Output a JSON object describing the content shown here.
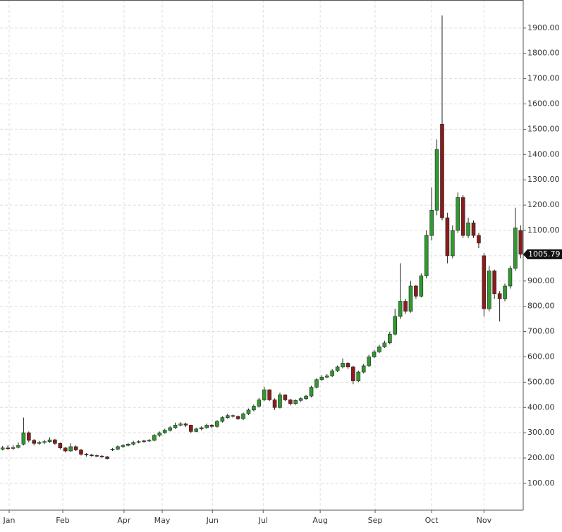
{
  "chart_data": {
    "type": "candlestick",
    "up_color": "#2f9a2f",
    "down_color": "#8b1c1c",
    "grid": true,
    "xlim": [
      0,
      100
    ],
    "xticks": [
      {
        "value": 1.75,
        "label": "Jan"
      },
      {
        "value": 12,
        "label": "Feb"
      },
      {
        "value": 23.7,
        "label": "Apr"
      },
      {
        "value": 31,
        "label": "May"
      },
      {
        "value": 40.6,
        "label": "Jun"
      },
      {
        "value": 50.3,
        "label": "Jul"
      },
      {
        "value": 61.2,
        "label": "Aug"
      },
      {
        "value": 71.7,
        "label": "Sep"
      },
      {
        "value": 82.5,
        "label": "Oct"
      },
      {
        "value": 92.5,
        "label": "Nov"
      }
    ],
    "ylim": [
      -6,
      2011
    ],
    "yticks": [
      {
        "value": 100,
        "label": "100.00"
      },
      {
        "value": 200,
        "label": "200.00"
      },
      {
        "value": 300,
        "label": "300.00"
      },
      {
        "value": 400,
        "label": "400.00"
      },
      {
        "value": 500,
        "label": "500.00"
      },
      {
        "value": 600,
        "label": "600.00"
      },
      {
        "value": 700,
        "label": "700.00"
      },
      {
        "value": 800,
        "label": "800.00"
      },
      {
        "value": 900,
        "label": "900.00"
      },
      {
        "value": 1000,
        "label": "1000.00"
      },
      {
        "value": 1100,
        "label": "1100.00"
      },
      {
        "value": 1200,
        "label": "1200.00"
      },
      {
        "value": 1300,
        "label": "1300.00"
      },
      {
        "value": 1400,
        "label": "1400.00"
      },
      {
        "value": 1500,
        "label": "1500.00"
      },
      {
        "value": 1600,
        "label": "1600.00"
      },
      {
        "value": 1700,
        "label": "1700.00"
      },
      {
        "value": 1800,
        "label": "1800.00"
      },
      {
        "value": 1900,
        "label": "1900.00"
      }
    ],
    "x": [
      0.5,
      1.5,
      2.5,
      3.5,
      4.5,
      5.5,
      6.5,
      7.5,
      8.5,
      9.5,
      10.5,
      11.5,
      12.5,
      13.5,
      14.5,
      15.5,
      16.5,
      17.5,
      18.5,
      19.5,
      20.5,
      21.5,
      22.5,
      23.5,
      24.5,
      25.5,
      26.5,
      27.5,
      28.5,
      29.5,
      30.5,
      31.5,
      32.5,
      33.5,
      34.5,
      35.5,
      36.5,
      37.5,
      38.5,
      39.5,
      40.5,
      41.5,
      42.5,
      43.5,
      44.5,
      45.5,
      46.5,
      47.5,
      48.5,
      49.5,
      50.5,
      51.5,
      52.5,
      53.5,
      54.5,
      55.5,
      56.5,
      57.5,
      58.5,
      59.5,
      60.5,
      61.5,
      62.5,
      63.5,
      64.5,
      65.5,
      66.5,
      67.5,
      68.5,
      69.5,
      70.5,
      71.5,
      72.5,
      73.5,
      74.5,
      75.5,
      76.5,
      77.5,
      78.5,
      79.5,
      80.5,
      81.5,
      82.5,
      83.5,
      84.5,
      85.5,
      86.5,
      87.5,
      88.5,
      89.5,
      90.5,
      91.5,
      92.5,
      93.5,
      94.5,
      95.5,
      96.5,
      97.5,
      98.5,
      99.5
    ],
    "open": [
      235,
      240,
      238,
      242,
      255,
      300,
      270,
      258,
      262,
      265,
      272,
      258,
      240,
      228,
      245,
      232,
      215,
      212,
      210,
      208,
      205,
      232,
      235,
      245,
      250,
      255,
      262,
      265,
      268,
      270,
      290,
      300,
      310,
      320,
      330,
      335,
      330,
      305,
      315,
      320,
      330,
      325,
      345,
      360,
      368,
      365,
      355,
      375,
      390,
      405,
      430,
      470,
      430,
      400,
      450,
      430,
      415,
      428,
      435,
      445,
      480,
      510,
      520,
      525,
      545,
      560,
      575,
      560,
      505,
      540,
      565,
      600,
      620,
      640,
      655,
      690,
      760,
      820,
      780,
      880,
      840,
      920,
      1080,
      1180,
      1520,
      1150,
      1000,
      1100,
      1230,
      1080,
      1130,
      1080,
      1000,
      790,
      940,
      850,
      830,
      880,
      950,
      1100
    ],
    "high": [
      248,
      250,
      252,
      262,
      360,
      305,
      275,
      268,
      272,
      282,
      276,
      262,
      244,
      258,
      250,
      236,
      220,
      217,
      214,
      212,
      208,
      240,
      250,
      255,
      260,
      268,
      270,
      272,
      275,
      295,
      305,
      316,
      326,
      340,
      342,
      340,
      332,
      320,
      326,
      336,
      334,
      350,
      366,
      375,
      372,
      368,
      380,
      396,
      412,
      438,
      482,
      472,
      436,
      458,
      452,
      434,
      432,
      440,
      450,
      486,
      516,
      528,
      532,
      552,
      566,
      594,
      580,
      565,
      546,
      572,
      608,
      628,
      648,
      664,
      700,
      790,
      970,
      830,
      900,
      885,
      930,
      1100,
      1270,
      1460,
      1950,
      1170,
      1120,
      1250,
      1240,
      1150,
      1140,
      1090,
      1010,
      960,
      945,
      860,
      890,
      960,
      1190,
      1120
    ],
    "low": [
      230,
      232,
      232,
      238,
      250,
      262,
      250,
      252,
      255,
      260,
      252,
      234,
      222,
      225,
      228,
      210,
      206,
      205,
      203,
      200,
      194,
      228,
      232,
      240,
      246,
      250,
      258,
      260,
      264,
      266,
      284,
      296,
      305,
      315,
      325,
      322,
      298,
      302,
      310,
      316,
      318,
      320,
      340,
      355,
      360,
      350,
      350,
      370,
      385,
      400,
      425,
      425,
      390,
      396,
      425,
      408,
      410,
      422,
      430,
      440,
      475,
      505,
      515,
      520,
      540,
      555,
      552,
      492,
      500,
      535,
      560,
      595,
      615,
      635,
      650,
      685,
      750,
      770,
      775,
      830,
      835,
      910,
      1060,
      1160,
      1140,
      970,
      990,
      1090,
      1070,
      1070,
      1070,
      1030,
      760,
      780,
      830,
      740,
      820,
      870,
      940,
      990
    ],
    "close": [
      240,
      238,
      242,
      250,
      300,
      270,
      258,
      262,
      265,
      272,
      258,
      240,
      228,
      245,
      232,
      215,
      212,
      210,
      208,
      205,
      198,
      235,
      245,
      250,
      255,
      262,
      265,
      268,
      270,
      290,
      300,
      310,
      320,
      330,
      335,
      330,
      305,
      315,
      320,
      330,
      325,
      345,
      360,
      368,
      365,
      355,
      375,
      390,
      405,
      430,
      470,
      430,
      400,
      450,
      430,
      415,
      428,
      435,
      445,
      480,
      510,
      520,
      525,
      545,
      560,
      575,
      560,
      505,
      540,
      565,
      600,
      620,
      640,
      655,
      690,
      760,
      820,
      780,
      880,
      840,
      920,
      1080,
      1180,
      1420,
      1150,
      1000,
      1100,
      1230,
      1080,
      1130,
      1080,
      1050,
      790,
      940,
      850,
      830,
      880,
      950,
      1110,
      1005.79
    ]
  }
}
